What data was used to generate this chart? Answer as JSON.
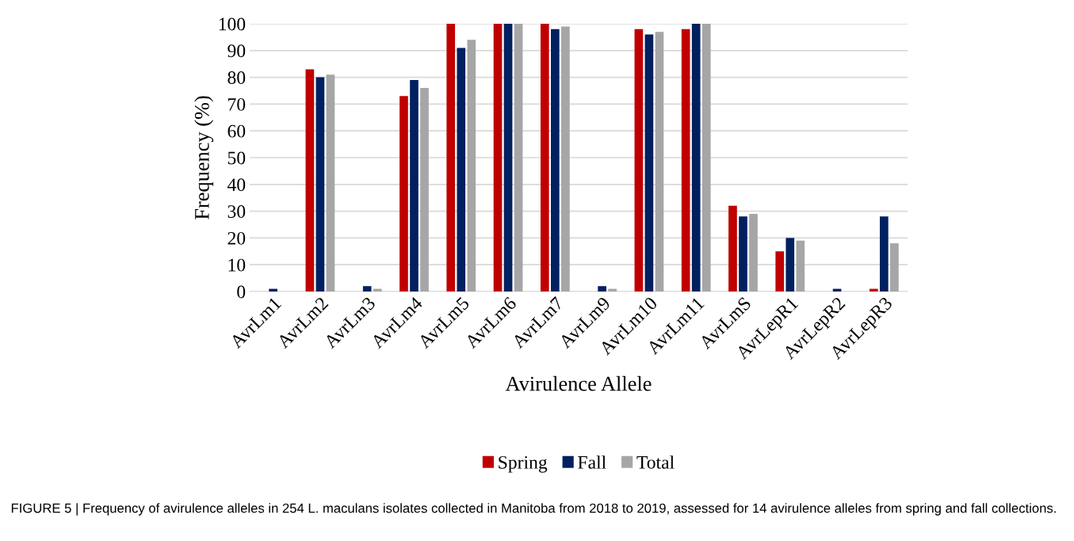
{
  "chart_data": {
    "type": "bar",
    "categories": [
      "AvrLm1",
      "AvrLm2",
      "AvrLm3",
      "AvrLm4",
      "AvrLm5",
      "AvrLm6",
      "AvrLm7",
      "AvrLm9",
      "AvrLm10",
      "AvrLm11",
      "AvrLmS",
      "AvrLepR1",
      "AvrLepR2",
      "AvrLepR3"
    ],
    "series": [
      {
        "name": "Spring",
        "color": "#c00000",
        "values": [
          0,
          83,
          0,
          73,
          100,
          100,
          100,
          0,
          98,
          98,
          32,
          15,
          0,
          1
        ]
      },
      {
        "name": "Fall",
        "color": "#002060",
        "values": [
          1,
          80,
          2,
          79,
          91,
          100,
          98,
          2,
          96,
          100,
          28,
          20,
          1,
          28
        ]
      },
      {
        "name": "Total",
        "color": "#a6a6a6",
        "values": [
          0,
          81,
          1,
          76,
          94,
          100,
          99,
          1,
          97,
          100,
          29,
          19,
          0,
          18
        ]
      }
    ],
    "xlabel": "Avirulence Allele",
    "ylabel": "Frequency (%)",
    "ylim": [
      0,
      100
    ],
    "yticks": [
      0,
      10,
      20,
      30,
      40,
      50,
      60,
      70,
      80,
      90,
      100
    ],
    "grid": "y",
    "legend": "bottom",
    "annotations": [
      "FIGURE 5 | Frequency of avirulence alleles in 254 L. maculans isolates collected in Manitoba from 2018 to 2019, assessed for 14 avirulence alleles from spring and fall collections."
    ]
  }
}
